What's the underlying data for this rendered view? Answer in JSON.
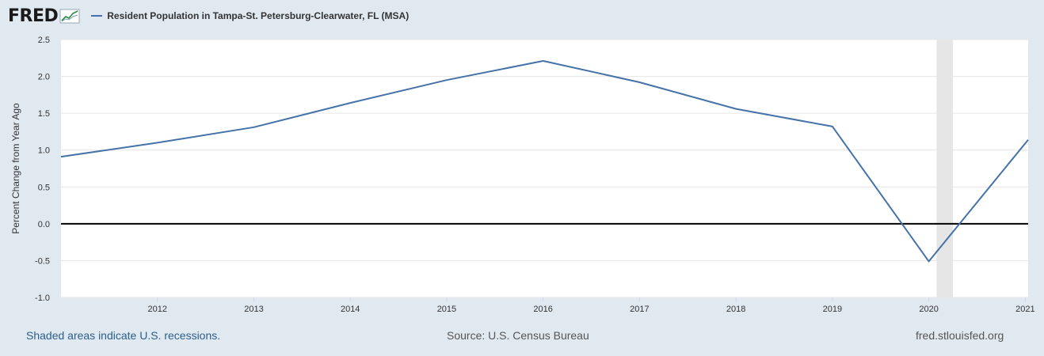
{
  "header": {
    "logo_text": "FRED",
    "legend_label": "Resident Population in Tampa-St. Petersburg-Clearwater, FL (MSA)"
  },
  "footer": {
    "recession_note": "Shaded areas indicate U.S. recessions.",
    "source": "Source: U.S. Census Bureau",
    "site": "fred.stlouisfed.org"
  },
  "colors": {
    "series": "#4572a7",
    "background": "#e1e9f0",
    "plot": "#ffffff",
    "recession": "#e6e6e6"
  },
  "chart_data": {
    "type": "line",
    "title": "",
    "ylabel": "Percent Change from Year Ago",
    "xlabel": "",
    "xlim": [
      2011,
      2021.03
    ],
    "ylim": [
      -1.0,
      2.5
    ],
    "yticks": [
      "-1.0",
      "-0.5",
      "0.0",
      "0.5",
      "1.0",
      "1.5",
      "2.0",
      "2.5"
    ],
    "xticks": [
      "2012",
      "2013",
      "2014",
      "2015",
      "2016",
      "2017",
      "2018",
      "2019",
      "2020",
      "2021"
    ],
    "grid": true,
    "recessions": [
      [
        2020.08,
        2020.25
      ]
    ],
    "series": [
      {
        "name": "Resident Population in Tampa-St. Petersburg-Clearwater, FL (MSA)",
        "x": [
          2011,
          2012,
          2013,
          2014,
          2015,
          2016,
          2017,
          2018,
          2019,
          2020,
          2021.03
        ],
        "values": [
          0.91,
          1.1,
          1.31,
          1.64,
          1.95,
          2.21,
          1.92,
          1.56,
          1.32,
          -0.51,
          1.14
        ]
      }
    ]
  }
}
